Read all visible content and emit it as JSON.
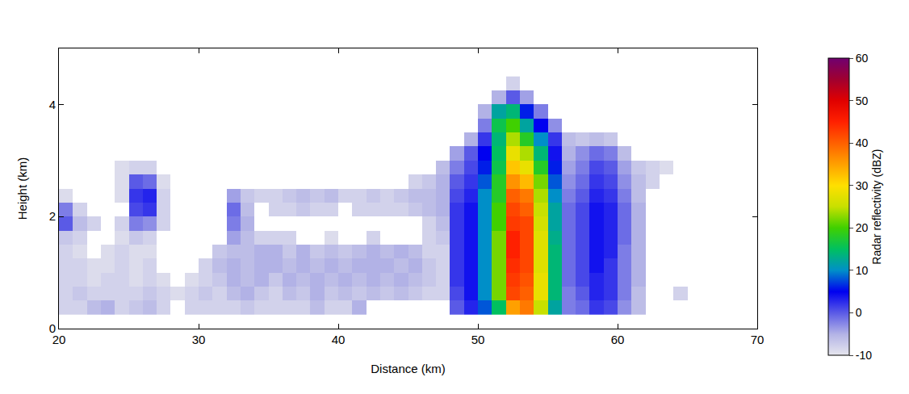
{
  "chart_data": {
    "type": "heatmap",
    "xlabel": "Distance (km)",
    "ylabel": "Height (km)",
    "xlim": [
      20,
      70
    ],
    "ylim": [
      0,
      5
    ],
    "xticks": [
      20,
      30,
      40,
      50,
      60,
      70
    ],
    "yticks": [
      0,
      2,
      4
    ],
    "grid": false,
    "colorbar_title": "Radar reflectivity (dBZ)",
    "zlim": [
      -10,
      60
    ],
    "zticks": [
      -10,
      0,
      10,
      20,
      30,
      40,
      50,
      60
    ],
    "x": [
      20.5,
      21.5,
      22.5,
      23.5,
      24.5,
      25.5,
      26.5,
      27.5,
      28.5,
      29.5,
      30.5,
      31.5,
      32.5,
      33.5,
      34.5,
      35.5,
      36.5,
      37.5,
      38.5,
      39.5,
      40.5,
      41.5,
      42.5,
      43.5,
      44.5,
      45.5,
      46.5,
      47.5,
      48.5,
      49.5,
      50.5,
      51.5,
      52.5,
      53.5,
      54.5,
      55.5,
      56.5,
      57.5,
      58.5,
      59.5,
      60.5,
      61.5,
      62.5,
      63.5,
      64.5,
      65.5,
      66.5,
      67.5,
      68.5,
      69.5
    ],
    "y": [
      0.375,
      0.625,
      0.875,
      1.125,
      1.375,
      1.625,
      1.875,
      2.125,
      2.375,
      2.625,
      2.875,
      3.125,
      3.375,
      3.625,
      3.875,
      4.125,
      4.375
    ],
    "z": [
      [
        -8,
        -8,
        -6,
        -5,
        -8,
        -7,
        -6,
        -8,
        null,
        -8,
        -8,
        -8,
        -8,
        -7,
        -8,
        -8,
        -8,
        -8,
        -6,
        -8,
        -8,
        -5,
        null,
        null,
        null,
        null,
        null,
        null,
        0,
        3,
        8,
        15,
        35,
        38,
        25,
        12,
        -2,
        -1,
        2,
        1,
        -3,
        -6,
        null,
        null,
        null,
        null,
        null,
        null,
        null,
        null
      ],
      [
        -8,
        -7,
        -8,
        -8,
        -8,
        -8,
        -7,
        -8,
        -9,
        -8,
        -7,
        -8,
        -6,
        -5,
        -7,
        -8,
        -6,
        -7,
        -5,
        -7,
        -6,
        -7,
        -6,
        -7,
        -6,
        -7,
        -8,
        -8,
        1,
        4,
        10,
        22,
        42,
        40,
        28,
        14,
        -2,
        0,
        3,
        2,
        -2,
        -6,
        null,
        null,
        -8,
        null,
        null,
        null,
        null,
        null
      ],
      [
        -8,
        -8,
        -9,
        -8,
        -8,
        -9,
        -8,
        -9,
        null,
        -9,
        -8,
        -7,
        -5,
        -6,
        -5,
        -7,
        -5,
        -6,
        -5,
        -6,
        -5,
        -6,
        -5,
        -6,
        -5,
        -6,
        -7,
        -8,
        2,
        4,
        10,
        22,
        43,
        41,
        28,
        14,
        -1,
        1,
        3,
        2,
        -2,
        -5,
        null,
        null,
        null,
        null,
        null,
        null,
        null,
        null
      ],
      [
        -8,
        -8,
        -9,
        -9,
        -8,
        -9,
        -8,
        null,
        null,
        null,
        -8,
        -6,
        -5,
        -6,
        -5,
        -5,
        -6,
        -5,
        -6,
        -5,
        -6,
        -5,
        -5,
        -5,
        -6,
        -5,
        -7,
        -8,
        2,
        4,
        10,
        22,
        44,
        42,
        27,
        14,
        -1,
        1,
        4,
        2,
        -2,
        -5,
        null,
        null,
        null,
        null,
        null,
        null,
        null,
        null
      ],
      [
        -8,
        -9,
        null,
        -9,
        -8,
        -9,
        -9,
        null,
        null,
        null,
        null,
        -7,
        -6,
        -6,
        -5,
        -5,
        -7,
        -5,
        -7,
        -6,
        -7,
        -6,
        -5,
        -6,
        -5,
        -6,
        -8,
        -8,
        2,
        4,
        10,
        22,
        45,
        42,
        27,
        14,
        -1,
        1,
        4,
        3,
        -2,
        -5,
        null,
        null,
        null,
        null,
        null,
        null,
        null,
        null
      ],
      [
        -7,
        -8,
        null,
        null,
        -9,
        -7,
        -8,
        null,
        null,
        null,
        null,
        null,
        -4,
        -6,
        -8,
        -8,
        -8,
        null,
        null,
        -9,
        null,
        null,
        -8,
        null,
        null,
        null,
        -8,
        -7,
        2,
        4,
        10,
        22,
        45,
        42,
        27,
        13,
        -1,
        1,
        4,
        3,
        -1,
        -5,
        null,
        null,
        null,
        null,
        null,
        null,
        null,
        null
      ],
      [
        0,
        -6,
        -8,
        null,
        -8,
        -2,
        -3,
        -8,
        null,
        null,
        null,
        null,
        -2,
        -5,
        null,
        null,
        null,
        null,
        null,
        null,
        null,
        null,
        null,
        null,
        null,
        null,
        -8,
        -6,
        2,
        4,
        10,
        20,
        43,
        42,
        26,
        12,
        -1,
        1,
        4,
        3,
        -1,
        -5,
        null,
        null,
        null,
        null,
        null,
        null,
        null,
        null
      ],
      [
        -2,
        -8,
        null,
        null,
        null,
        1,
        2,
        -8,
        null,
        null,
        null,
        null,
        -1,
        -6,
        null,
        -8,
        -8,
        -7,
        -8,
        -8,
        null,
        -8,
        -8,
        -8,
        -8,
        -7,
        -6,
        -5,
        2,
        4,
        10,
        20,
        42,
        40,
        25,
        12,
        -1,
        1,
        4,
        3,
        -1,
        -5,
        null,
        null,
        null,
        null,
        null,
        null,
        null,
        null
      ],
      [
        -9,
        null,
        null,
        null,
        -9,
        2,
        3,
        -8,
        null,
        null,
        null,
        null,
        -4,
        -7,
        -8,
        -8,
        -7,
        -6,
        -7,
        -6,
        -8,
        -8,
        -7,
        -8,
        -7,
        -6,
        -6,
        -5,
        1,
        3,
        10,
        18,
        40,
        38,
        24,
        10,
        -2,
        0,
        3,
        2,
        -2,
        -6,
        null,
        null,
        null,
        null,
        null,
        null,
        null,
        null
      ],
      [
        null,
        null,
        null,
        null,
        -9,
        0,
        -1,
        -9,
        null,
        null,
        null,
        null,
        null,
        null,
        null,
        null,
        null,
        null,
        null,
        null,
        null,
        null,
        null,
        null,
        null,
        -8,
        -7,
        -5,
        0,
        2,
        8,
        18,
        36,
        33,
        22,
        8,
        -3,
        -1,
        2,
        1,
        -3,
        -6,
        -8,
        null,
        null,
        null,
        null,
        null,
        null,
        null
      ],
      [
        null,
        null,
        null,
        null,
        -9,
        -8,
        -8,
        null,
        null,
        null,
        null,
        null,
        null,
        null,
        null,
        null,
        null,
        null,
        null,
        null,
        null,
        null,
        null,
        null,
        null,
        null,
        null,
        -6,
        -2,
        1,
        6,
        16,
        32,
        28,
        18,
        6,
        -4,
        -2,
        1,
        0,
        -4,
        -7,
        -8,
        -9,
        null,
        null,
        null,
        null,
        null,
        null
      ],
      [
        null,
        null,
        null,
        null,
        null,
        null,
        null,
        null,
        null,
        null,
        null,
        null,
        null,
        null,
        null,
        null,
        null,
        null,
        null,
        null,
        null,
        null,
        null,
        null,
        null,
        null,
        null,
        null,
        -4,
        0,
        5,
        15,
        28,
        24,
        14,
        4,
        -5,
        -3,
        -1,
        -2,
        -6,
        null,
        null,
        null,
        null,
        null,
        null,
        null,
        null,
        null
      ],
      [
        null,
        null,
        null,
        null,
        null,
        null,
        null,
        null,
        null,
        null,
        null,
        null,
        null,
        null,
        null,
        null,
        null,
        null,
        null,
        null,
        null,
        null,
        null,
        null,
        null,
        null,
        null,
        null,
        null,
        -5,
        2,
        14,
        24,
        18,
        10,
        2,
        -6,
        -7,
        -6,
        -7,
        null,
        null,
        null,
        null,
        null,
        null,
        null,
        null,
        null,
        null
      ],
      [
        null,
        null,
        null,
        null,
        null,
        null,
        null,
        null,
        null,
        null,
        null,
        null,
        null,
        null,
        null,
        null,
        null,
        null,
        null,
        null,
        null,
        null,
        null,
        null,
        null,
        null,
        null,
        null,
        null,
        null,
        -2,
        16,
        20,
        12,
        5,
        -3,
        null,
        null,
        null,
        null,
        null,
        null,
        null,
        null,
        null,
        null,
        null,
        null,
        null,
        null
      ],
      [
        null,
        null,
        null,
        null,
        null,
        null,
        null,
        null,
        null,
        null,
        null,
        null,
        null,
        null,
        null,
        null,
        null,
        null,
        null,
        null,
        null,
        null,
        null,
        null,
        null,
        null,
        null,
        null,
        null,
        null,
        -5,
        12,
        14,
        6,
        -2,
        null,
        null,
        null,
        null,
        null,
        null,
        null,
        null,
        null,
        null,
        null,
        null,
        null,
        null,
        null
      ],
      [
        null,
        null,
        null,
        null,
        null,
        null,
        null,
        null,
        null,
        null,
        null,
        null,
        null,
        null,
        null,
        null,
        null,
        null,
        null,
        null,
        null,
        null,
        null,
        null,
        null,
        null,
        null,
        null,
        null,
        null,
        null,
        -5,
        0,
        -4,
        null,
        null,
        null,
        null,
        null,
        null,
        null,
        null,
        null,
        null,
        null,
        null,
        null,
        null,
        null,
        null
      ],
      [
        null,
        null,
        null,
        null,
        null,
        null,
        null,
        null,
        null,
        null,
        null,
        null,
        null,
        null,
        null,
        null,
        null,
        null,
        null,
        null,
        null,
        null,
        null,
        null,
        null,
        null,
        null,
        null,
        null,
        null,
        null,
        null,
        -8,
        null,
        null,
        null,
        null,
        null,
        null,
        null,
        null,
        null,
        null,
        null,
        null,
        null,
        null,
        null,
        null,
        null
      ]
    ]
  }
}
